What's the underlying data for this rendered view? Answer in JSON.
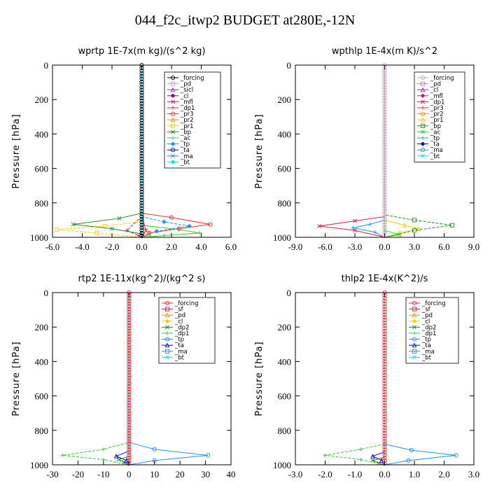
{
  "title": "044_f2c_itwp2  BUDGET at280E,-12N",
  "chart_data": [
    {
      "type": "line",
      "title": "wprtp  1E-7x(m kg)/(s^2 kg)",
      "ylabel": "Pressure [hPa]",
      "xlim": [
        -6,
        6
      ],
      "ylim": [
        0,
        1000
      ],
      "xticks": [
        "-6.0",
        "-4.0",
        "-2.0",
        "0.0",
        "2.0",
        "4.0",
        "6.0"
      ],
      "yticks": [
        "0",
        "200",
        "400",
        "600",
        "800",
        "1000"
      ],
      "legend_position": "top-right",
      "series": [
        {
          "name": "_forcing",
          "color": "#000000",
          "points": [
            [
              0,
              0
            ],
            [
              0,
              1000
            ]
          ]
        },
        {
          "name": "_pd",
          "color": "#c8a2c8",
          "points": [
            [
              0,
              0
            ],
            [
              0,
              1000
            ]
          ]
        },
        {
          "name": "_sicl",
          "color": "#8a2be2",
          "points": [
            [
              0,
              0
            ],
            [
              0,
              1000
            ]
          ]
        },
        {
          "name": "_cl",
          "color": "#800080",
          "points": [
            [
              0,
              0
            ],
            [
              0,
              1000
            ]
          ]
        },
        {
          "name": "_mfl",
          "color": "#c71585",
          "points": [
            [
              0,
              0
            ],
            [
              0,
              880
            ],
            [
              0.3,
              960
            ],
            [
              0,
              1000
            ]
          ]
        },
        {
          "name": "_dp1",
          "color": "#dc143c",
          "points": [
            [
              0,
              0
            ],
            [
              0,
              880
            ],
            [
              -1.0,
              960
            ],
            [
              -0.2,
              990
            ],
            [
              0,
              1000
            ]
          ]
        },
        {
          "name": "_pr3",
          "color": "#ff2a2a",
          "points": [
            [
              0,
              0
            ],
            [
              0,
              860
            ],
            [
              2.0,
              885
            ],
            [
              4.6,
              925
            ],
            [
              2.5,
              950
            ],
            [
              0.5,
              975
            ],
            [
              0,
              1000
            ]
          ]
        },
        {
          "name": "_pr2",
          "color": "#ff8c00",
          "points": [
            [
              0,
              0
            ],
            [
              0,
              940
            ],
            [
              0.5,
              980
            ],
            [
              0,
              1000
            ]
          ]
        },
        {
          "name": "_pr1",
          "color": "#ffcc00",
          "points": [
            [
              0,
              0
            ],
            [
              0,
              910
            ],
            [
              -2.5,
              935
            ],
            [
              -5.7,
              955
            ],
            [
              -3,
              975
            ],
            [
              0,
              1000
            ]
          ]
        },
        {
          "name": "_bp",
          "color": "#228b22",
          "points": [
            [
              0,
              0
            ],
            [
              0,
              860
            ],
            [
              -1.5,
              890
            ],
            [
              -4.6,
              925
            ],
            [
              -2,
              950
            ],
            [
              0,
              980
            ],
            [
              0,
              1000
            ]
          ]
        },
        {
          "name": "_ac",
          "color": "#32cd32",
          "points": [
            [
              0,
              0
            ],
            [
              0,
              930
            ],
            [
              2.5,
              955
            ],
            [
              3.9,
              975
            ],
            [
              1.5,
              990
            ],
            [
              0,
              1000
            ]
          ]
        },
        {
          "name": "_tp",
          "color": "#1e90ff",
          "points": [
            [
              0,
              0
            ],
            [
              0,
              880
            ],
            [
              1.5,
              910
            ],
            [
              3.2,
              935
            ],
            [
              1.0,
              965
            ],
            [
              0,
              1000
            ]
          ]
        },
        {
          "name": "_ta",
          "color": "#0000cd",
          "points": [
            [
              0,
              0
            ],
            [
              0,
              1000
            ]
          ]
        },
        {
          "name": "_ma",
          "color": "#4682b4",
          "points": [
            [
              0,
              0
            ],
            [
              0,
              1000
            ]
          ]
        },
        {
          "name": "_bt",
          "color": "#00e5ee",
          "points": [
            [
              0,
              0
            ],
            [
              0,
              1000
            ]
          ]
        }
      ]
    },
    {
      "type": "line",
      "title": "wpthlp  1E-4x(m K)/s^2",
      "ylabel": "Pressure [hPa]",
      "xlim": [
        -9,
        9
      ],
      "ylim": [
        0,
        1000
      ],
      "xticks": [
        "-9.0",
        "-6.0",
        "-3.0",
        "0.0",
        "3.0",
        "6.0",
        "9.0"
      ],
      "yticks": [
        "0",
        "200",
        "400",
        "600",
        "800",
        "1000"
      ],
      "legend_position": "top-right",
      "series": [
        {
          "name": "_forcing",
          "color": "#c8a2c8",
          "points": [
            [
              0,
              0
            ],
            [
              0,
              1000
            ]
          ]
        },
        {
          "name": "_pd",
          "color": "#b57edc",
          "points": [
            [
              0,
              0
            ],
            [
              0,
              1000
            ]
          ]
        },
        {
          "name": "_cl",
          "color": "#8a2be2",
          "points": [
            [
              0,
              0
            ],
            [
              0,
              1000
            ]
          ]
        },
        {
          "name": "_mfl",
          "color": "#c71585",
          "points": [
            [
              0,
              0
            ],
            [
              0,
              1000
            ]
          ]
        },
        {
          "name": "_dp1",
          "color": "#dc143c",
          "points": [
            [
              0,
              0
            ],
            [
              0,
              880
            ],
            [
              -3.0,
              905
            ],
            [
              -6.6,
              935
            ],
            [
              -3,
              960
            ],
            [
              0,
              1000
            ]
          ]
        },
        {
          "name": "_pr3",
          "color": "#ff2a2a",
          "points": [
            [
              0,
              0
            ],
            [
              0,
              1000
            ]
          ]
        },
        {
          "name": "_pr2",
          "color": "#ff8c00",
          "points": [
            [
              0,
              0
            ],
            [
              0,
              1000
            ]
          ]
        },
        {
          "name": "_pr1",
          "color": "#ffcc00",
          "points": [
            [
              0,
              0
            ],
            [
              0,
              900
            ],
            [
              2.0,
              930
            ],
            [
              3.4,
              950
            ],
            [
              1.5,
              975
            ],
            [
              0,
              1000
            ]
          ]
        },
        {
          "name": "_bp",
          "color": "#228b22",
          "points": [
            [
              0,
              0
            ],
            [
              0,
              870
            ],
            [
              3.0,
              900
            ],
            [
              6.8,
              930
            ],
            [
              3,
              960
            ],
            [
              0,
              1000
            ]
          ]
        },
        {
          "name": "_ac",
          "color": "#32cd32",
          "points": [
            [
              0,
              0
            ],
            [
              0,
              960
            ],
            [
              1.5,
              985
            ],
            [
              0,
              1000
            ]
          ]
        },
        {
          "name": "_tp",
          "color": "#1e90ff",
          "points": [
            [
              0,
              0
            ],
            [
              0,
              900
            ],
            [
              -1.5,
              925
            ],
            [
              -3.2,
              945
            ],
            [
              -1,
              970
            ],
            [
              0,
              1000
            ]
          ]
        },
        {
          "name": "_ta",
          "color": "#0000cd",
          "points": [
            [
              0,
              0
            ],
            [
              0,
              1000
            ]
          ]
        },
        {
          "name": "_ma",
          "color": "#4682b4",
          "points": [
            [
              0,
              0
            ],
            [
              0,
              1000
            ]
          ]
        },
        {
          "name": "_bt",
          "color": "#00e5ee",
          "points": [
            [
              0,
              0
            ],
            [
              0,
              1000
            ]
          ]
        }
      ]
    },
    {
      "type": "line",
      "title": "rtp2  1E-11x(kg^2)/(kg^2 s)",
      "ylabel": "Pressure [hPa]",
      "xlim": [
        -30,
        40
      ],
      "ylim": [
        0,
        1000
      ],
      "xticks": [
        "-30",
        "-20",
        "-10",
        "0",
        "10",
        "20",
        "30",
        "40"
      ],
      "yticks": [
        "0",
        "200",
        "400",
        "600",
        "800",
        "1000"
      ],
      "legend_position": "top-right",
      "series": [
        {
          "name": "_forcing",
          "color": "#ff2a2a",
          "points": [
            [
              0,
              0
            ],
            [
              0,
              1000
            ]
          ]
        },
        {
          "name": "_sf",
          "color": "#dc143c",
          "points": [
            [
              0,
              0
            ],
            [
              0,
              1000
            ]
          ]
        },
        {
          "name": "_pd",
          "color": "#ff8c00",
          "points": [
            [
              0,
              0
            ],
            [
              0,
              1000
            ]
          ]
        },
        {
          "name": "_cl",
          "color": "#ffcc00",
          "points": [
            [
              0,
              0
            ],
            [
              0,
              1000
            ]
          ]
        },
        {
          "name": "_dp2",
          "color": "#228b22",
          "points": [
            [
              0,
              0
            ],
            [
              0,
              950
            ],
            [
              -4,
              970
            ],
            [
              -2,
              985
            ],
            [
              0,
              1000
            ]
          ]
        },
        {
          "name": "_dp1",
          "color": "#32cd32",
          "points": [
            [
              0,
              0
            ],
            [
              0,
              870
            ],
            [
              -10,
              910
            ],
            [
              -26,
              945
            ],
            [
              -10,
              970
            ],
            [
              0,
              1000
            ]
          ]
        },
        {
          "name": "_tp",
          "color": "#1e90ff",
          "points": [
            [
              0,
              0
            ],
            [
              0,
              870
            ],
            [
              10,
              910
            ],
            [
              31,
              945
            ],
            [
              10,
              975
            ],
            [
              0,
              1000
            ]
          ]
        },
        {
          "name": "_ta",
          "color": "#0000cd",
          "points": [
            [
              0,
              0
            ],
            [
              0,
              920
            ],
            [
              -5,
              950
            ],
            [
              -1,
              975
            ],
            [
              0,
              1000
            ]
          ]
        },
        {
          "name": "_ma",
          "color": "#4682b4",
          "points": [
            [
              0,
              0
            ],
            [
              0,
              1000
            ]
          ]
        },
        {
          "name": "_bt",
          "color": "#00e5ee",
          "points": [
            [
              0,
              0
            ],
            [
              0,
              1000
            ]
          ]
        }
      ]
    },
    {
      "type": "line",
      "title": "thlp2  1E-4x(K^2)/s",
      "ylabel": "Pressure [hPa]",
      "xlim": [
        -3,
        3
      ],
      "ylim": [
        0,
        1000
      ],
      "xticks": [
        "-3.0",
        "-2.0",
        "-1.0",
        "0.0",
        "1.0",
        "2.0",
        "3.0"
      ],
      "yticks": [
        "0",
        "200",
        "400",
        "600",
        "800",
        "1000"
      ],
      "legend_position": "top-right",
      "series": [
        {
          "name": "_forcing",
          "color": "#ff2a2a",
          "points": [
            [
              0,
              0
            ],
            [
              0,
              1000
            ]
          ]
        },
        {
          "name": "_sf",
          "color": "#dc143c",
          "points": [
            [
              0,
              0
            ],
            [
              0,
              1000
            ]
          ]
        },
        {
          "name": "_pd",
          "color": "#ff8c00",
          "points": [
            [
              0,
              0
            ],
            [
              0,
              1000
            ]
          ]
        },
        {
          "name": "_cl",
          "color": "#ffcc00",
          "points": [
            [
              0,
              0
            ],
            [
              0,
              1000
            ]
          ]
        },
        {
          "name": "_dp2",
          "color": "#228b22",
          "points": [
            [
              0,
              0
            ],
            [
              0,
              955
            ],
            [
              -0.4,
              975
            ],
            [
              -0.2,
              990
            ],
            [
              0,
              1000
            ]
          ]
        },
        {
          "name": "_dp1",
          "color": "#32cd32",
          "points": [
            [
              0,
              0
            ],
            [
              0,
              880
            ],
            [
              -0.8,
              910
            ],
            [
              -2.0,
              945
            ],
            [
              -0.8,
              970
            ],
            [
              0,
              1000
            ]
          ]
        },
        {
          "name": "_tp",
          "color": "#1e90ff",
          "points": [
            [
              0,
              0
            ],
            [
              0,
              880
            ],
            [
              0.9,
              915
            ],
            [
              2.4,
              945
            ],
            [
              0.8,
              975
            ],
            [
              0,
              1000
            ]
          ]
        },
        {
          "name": "_ta",
          "color": "#0000cd",
          "points": [
            [
              0,
              0
            ],
            [
              0,
              925
            ],
            [
              -0.4,
              950
            ],
            [
              -0.1,
              975
            ],
            [
              0,
              1000
            ]
          ]
        },
        {
          "name": "_ma",
          "color": "#4682b4",
          "points": [
            [
              0,
              0
            ],
            [
              0,
              1000
            ]
          ]
        },
        {
          "name": "_bt",
          "color": "#00e5ee",
          "points": [
            [
              0,
              0
            ],
            [
              0,
              1000
            ]
          ]
        }
      ]
    }
  ]
}
